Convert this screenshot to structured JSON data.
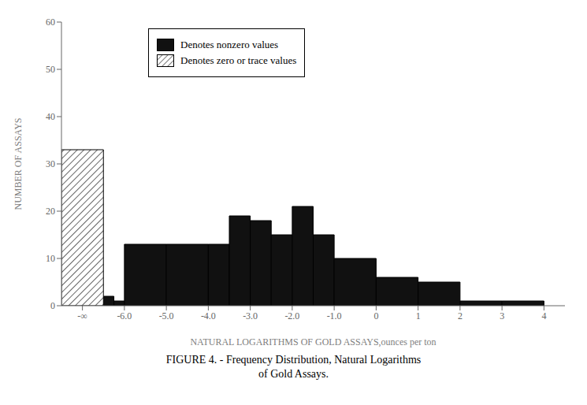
{
  "chart_data": {
    "type": "histogram",
    "title": "FIGURE 4. - Frequency Distribution, Natural Logarithms\nof Gold Assays.",
    "xlabel": "NATURAL LOGARITHMS OF GOLD ASSAYS,ounces per ton",
    "ylabel": "NUMBER OF ASSAYS",
    "bins": [
      -7.5,
      -6.5,
      -6.25,
      -6.0,
      -5.0,
      -4.0,
      -3.5,
      -3.0,
      -2.5,
      -2.0,
      -1.5,
      -1.0,
      0.0,
      1.0,
      2.0,
      3.0,
      4.0
    ],
    "series": [
      {
        "name": "Denotes nonzero values",
        "color": "#111111",
        "values": [
          null,
          2,
          1,
          13,
          13,
          13,
          19,
          18,
          15,
          21,
          15,
          10,
          6,
          5,
          1,
          1
        ]
      },
      {
        "name": "Denotes zero or trace values",
        "color": "#ffffff",
        "values": [
          33,
          null,
          null,
          null,
          null,
          null,
          null,
          null,
          null,
          null,
          null,
          null,
          null,
          null,
          null,
          null
        ]
      }
    ],
    "xlim": [
      -7.5,
      4.5
    ],
    "xticks": [
      {
        "value": -7.0,
        "label": "-∞"
      },
      {
        "value": -6.0,
        "label": "-6.0"
      },
      {
        "value": -5.0,
        "label": "-5.0"
      },
      {
        "value": -4.0,
        "label": "-4.0"
      },
      {
        "value": -3.0,
        "label": "-3.0"
      },
      {
        "value": -2.0,
        "label": "-2.0"
      },
      {
        "value": -1.0,
        "label": "-1.0"
      },
      0,
      1,
      2,
      3,
      4
    ],
    "ylim": [
      0,
      60
    ],
    "yticks": [
      0,
      10,
      20,
      30,
      40,
      50,
      60
    ],
    "grid": false,
    "legend": "upper left"
  }
}
